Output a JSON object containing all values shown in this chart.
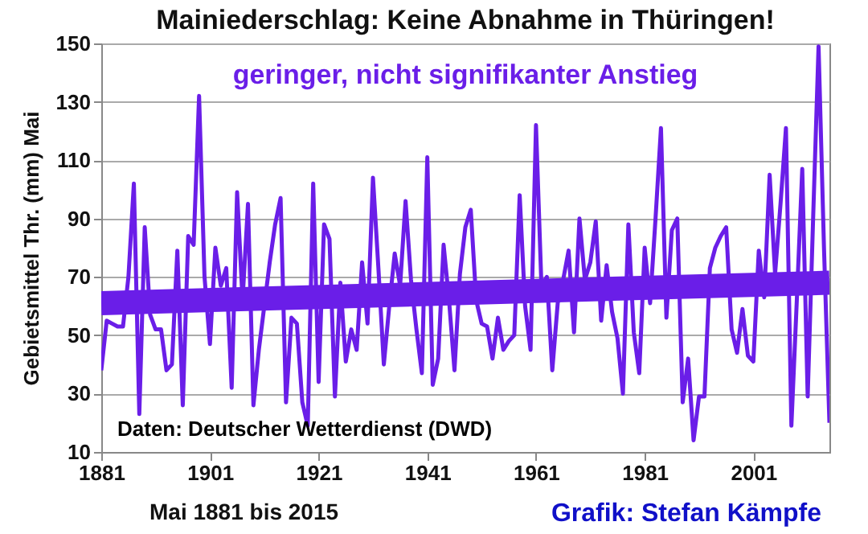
{
  "chart_data": {
    "type": "line",
    "title": "Mainiederschlag: Keine Abnahme in Thüringen!",
    "subtitle": "geringer, nicht signifikanter Anstieg",
    "ylabel": "Gebietsmittel Thr. (mm) Mai",
    "annotations": [
      "Daten: Deutscher Wetterdienst (DWD)",
      "Mai 1881 bis 2015",
      "Grafik: Stefan Kämpfe"
    ],
    "x": [
      1881,
      1882,
      1883,
      1884,
      1885,
      1886,
      1887,
      1888,
      1889,
      1890,
      1891,
      1892,
      1893,
      1894,
      1895,
      1896,
      1897,
      1898,
      1899,
      1900,
      1901,
      1902,
      1903,
      1904,
      1905,
      1906,
      1907,
      1908,
      1909,
      1910,
      1911,
      1912,
      1913,
      1914,
      1915,
      1916,
      1917,
      1918,
      1919,
      1920,
      1921,
      1922,
      1923,
      1924,
      1925,
      1926,
      1927,
      1928,
      1929,
      1930,
      1931,
      1932,
      1933,
      1934,
      1935,
      1936,
      1937,
      1938,
      1939,
      1940,
      1941,
      1942,
      1943,
      1944,
      1945,
      1946,
      1947,
      1948,
      1949,
      1950,
      1951,
      1952,
      1953,
      1954,
      1955,
      1956,
      1957,
      1958,
      1959,
      1960,
      1961,
      1962,
      1963,
      1964,
      1965,
      1966,
      1967,
      1968,
      1969,
      1970,
      1971,
      1972,
      1973,
      1974,
      1975,
      1976,
      1977,
      1978,
      1979,
      1980,
      1981,
      1982,
      1983,
      1984,
      1985,
      1986,
      1987,
      1988,
      1989,
      1990,
      1991,
      1992,
      1993,
      1994,
      1995,
      1996,
      1997,
      1998,
      1999,
      2000,
      2001,
      2002,
      2003,
      2004,
      2005,
      2006,
      2007,
      2008,
      2009,
      2010,
      2011,
      2012,
      2013,
      2014,
      2015
    ],
    "series": [
      {
        "color": "#6a1ee8",
        "values": [
          38,
          55,
          54,
          53,
          53,
          70,
          102,
          23,
          87,
          57,
          52,
          52,
          38,
          40,
          79,
          26,
          84,
          81,
          132,
          70,
          47,
          80,
          67,
          73,
          32,
          99,
          62,
          95,
          26,
          45,
          60,
          75,
          88,
          97,
          27,
          56,
          54,
          27,
          19,
          102,
          34,
          88,
          83,
          29,
          68,
          41,
          52,
          45,
          75,
          54,
          104,
          73,
          40,
          60,
          78,
          67,
          96,
          69,
          52,
          37,
          111,
          33,
          42,
          81,
          62,
          38,
          71,
          87,
          93,
          62,
          54,
          53,
          42,
          56,
          45,
          48,
          50,
          98,
          60,
          45,
          122,
          67,
          70,
          38,
          61,
          69,
          79,
          51,
          90,
          69,
          75,
          89,
          55,
          74,
          58,
          49,
          30,
          88,
          51,
          37,
          80,
          61,
          90,
          121,
          56,
          86,
          90,
          27,
          42,
          14,
          29,
          29,
          73,
          80,
          84,
          87,
          52,
          44,
          59,
          43,
          41,
          79,
          63,
          105,
          71,
          95,
          121,
          19,
          62,
          107,
          29,
          90,
          149,
          80,
          20
        ]
      },
      {
        "color": "#6a1ee8",
        "x": [
          1881,
          2015
        ],
        "values": [
          61,
          68
        ]
      }
    ],
    "xlim": [
      1881,
      2015
    ],
    "xticks": [
      1881,
      1901,
      1921,
      1941,
      1961,
      1981,
      2001
    ],
    "ylim": [
      10,
      150
    ],
    "yticks": [
      10,
      30,
      50,
      70,
      90,
      110,
      130,
      150
    ],
    "grid": "y"
  }
}
